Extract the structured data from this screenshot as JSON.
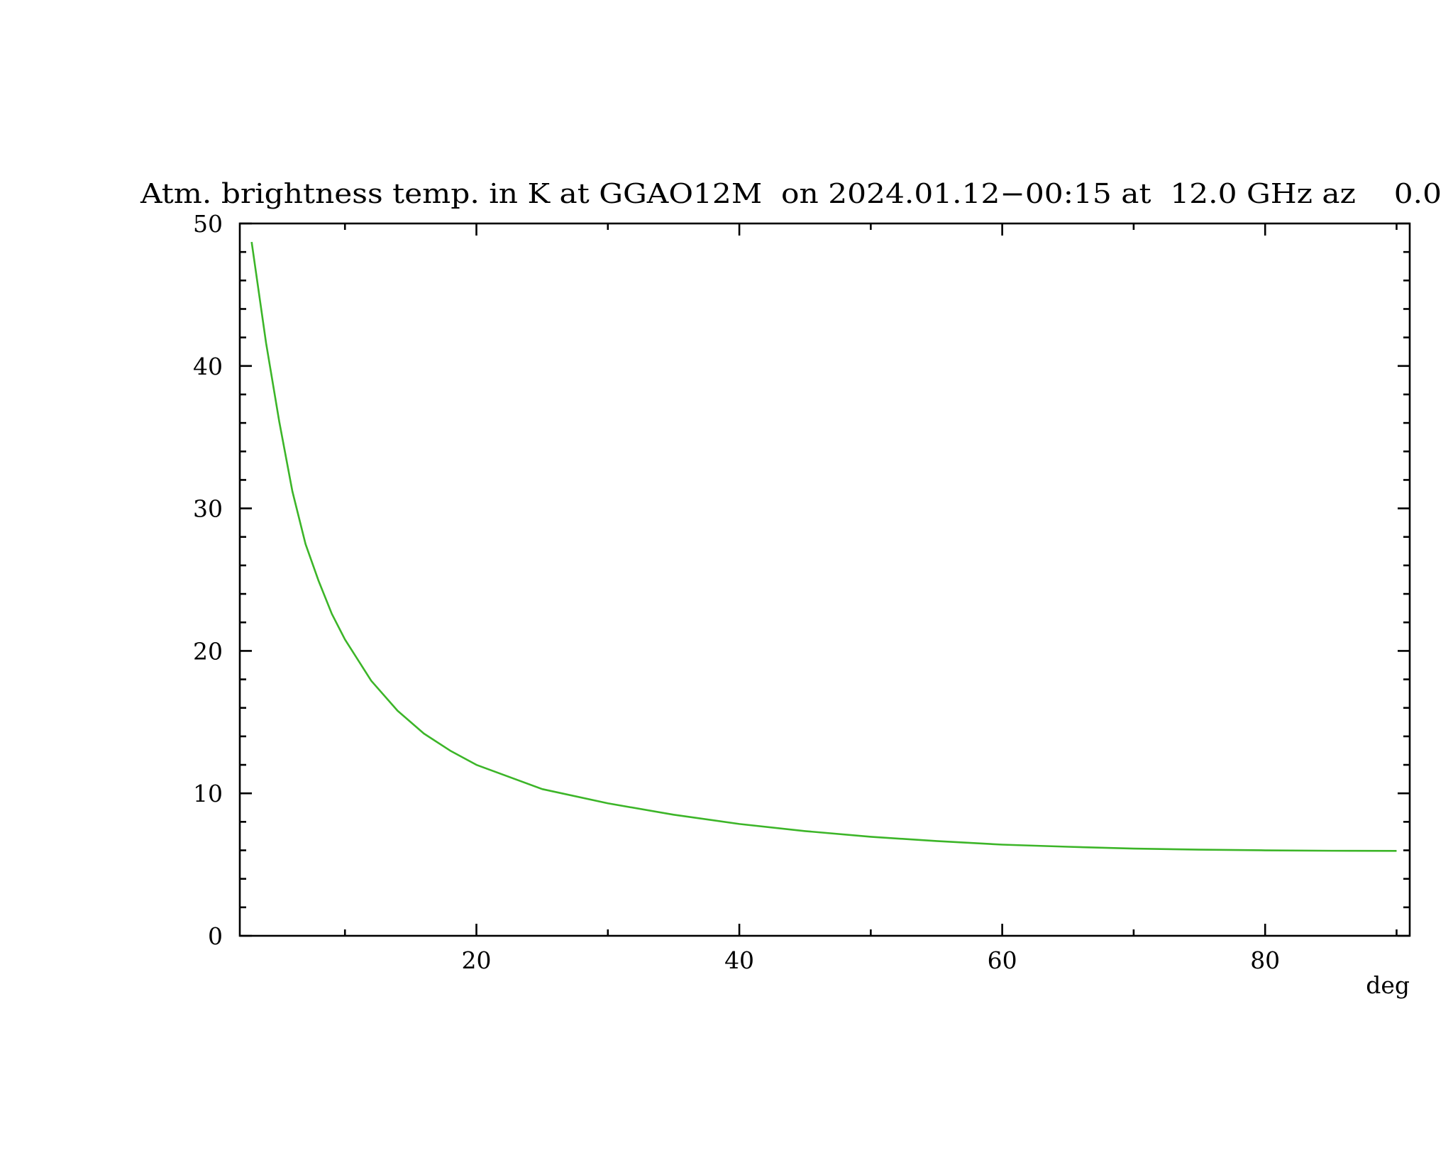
{
  "chart_data": {
    "type": "line",
    "title": "Atm. brightness temp. in K at GGAO12M  on 2024.01.12−00:15 at  12.0 GHz az    0.0",
    "x_label": "deg",
    "x": [
      2.9,
      4,
      5,
      6,
      7,
      8,
      9,
      10,
      12,
      14,
      16,
      18,
      20,
      25,
      30,
      35,
      40,
      45,
      50,
      55,
      60,
      65,
      70,
      75,
      80,
      85,
      90
    ],
    "series": [
      {
        "color": "#3cb528",
        "values": [
          48.7,
          41.6,
          36.1,
          31.2,
          27.5,
          24.9,
          22.6,
          20.8,
          17.9,
          15.8,
          14.2,
          13.0,
          12.0,
          10.3,
          9.3,
          8.5,
          7.85,
          7.35,
          6.95,
          6.65,
          6.4,
          6.25,
          6.12,
          6.05,
          6.0,
          5.97,
          5.96
        ]
      }
    ],
    "xlim": [
      2,
      91
    ],
    "xticks": [
      20,
      40,
      60,
      80
    ],
    "xminorticks": [
      10,
      30,
      50,
      70,
      90
    ],
    "ylim": [
      0,
      50
    ],
    "yticks": [
      0,
      10,
      20,
      30,
      40,
      50
    ],
    "yminorticks": [
      2,
      4,
      6,
      8,
      12,
      14,
      16,
      18,
      22,
      24,
      26,
      28,
      32,
      34,
      36,
      38,
      42,
      44,
      46,
      48
    ]
  }
}
